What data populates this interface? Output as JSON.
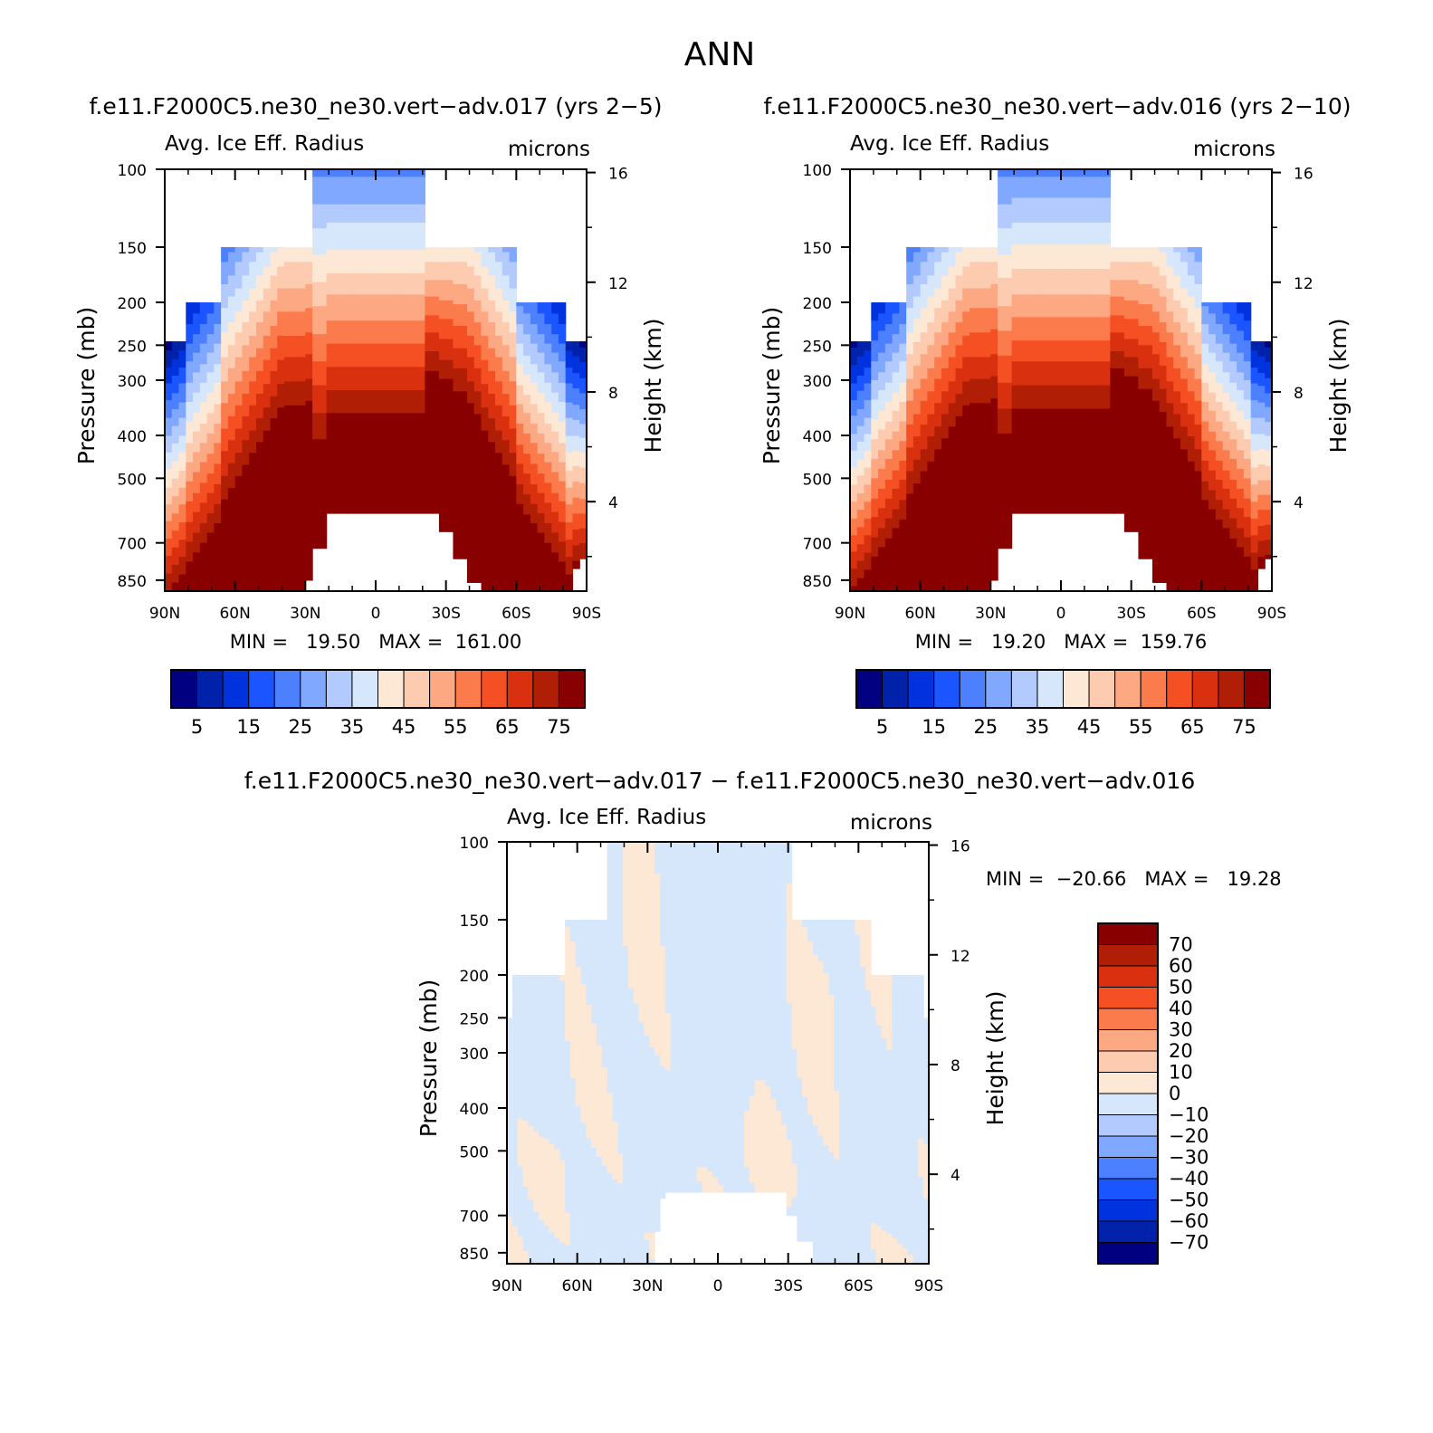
{
  "page_title": "ANN",
  "colors": {
    "abs_scale": [
      "#000080",
      "#0022aa",
      "#0033dd",
      "#1a55ff",
      "#4d80ff",
      "#80a8ff",
      "#b3caff",
      "#d6e7fb",
      "#fde8d6",
      "#fccbb0",
      "#fca882",
      "#fb7b4c",
      "#f55023",
      "#d93010",
      "#b01e06",
      "#880000"
    ],
    "diff_scale": [
      "#000080",
      "#0022aa",
      "#0033dd",
      "#1a55ff",
      "#4d80ff",
      "#80a8ff",
      "#b3caff",
      "#d6e7fb",
      "#fde8d6",
      "#fccbb0",
      "#fca882",
      "#fb7b4c",
      "#f55023",
      "#d93010",
      "#b01e06",
      "#880000"
    ]
  },
  "chart_data": [
    {
      "type": "heatmap",
      "title": "f.e11.F2000C5.ne30_ne30.vert−adv.017 (yrs 2−5)",
      "subtitle_left": "Avg. Ice Eff. Radius",
      "subtitle_right": "microns",
      "ylabel": "Pressure (mb)",
      "ylabel_right": "Height (km)",
      "x_ticks": [
        "90N",
        "60N",
        "30N",
        "0",
        "30S",
        "60S",
        "90S"
      ],
      "y_ticks": [
        "100",
        "150",
        "200",
        "250",
        "300",
        "400",
        "500",
        "700",
        "850"
      ],
      "y_ticks_right": [
        "16",
        "12",
        "8",
        "4"
      ],
      "stats": "MIN =   19.50   MAX =  161.00",
      "colorbar_labels": [
        "5",
        "15",
        "25",
        "35",
        "45",
        "55",
        "65",
        "75"
      ],
      "colorbar_levels": [
        0,
        5,
        10,
        15,
        20,
        25,
        30,
        35,
        40,
        45,
        50,
        55,
        60,
        65,
        70,
        75
      ],
      "min": 19.5,
      "max": 161.0
    },
    {
      "type": "heatmap",
      "title": "f.e11.F2000C5.ne30_ne30.vert−adv.016 (yrs 2−10)",
      "subtitle_left": "Avg. Ice Eff. Radius",
      "subtitle_right": "microns",
      "ylabel": "Pressure (mb)",
      "ylabel_right": "Height (km)",
      "x_ticks": [
        "90N",
        "60N",
        "30N",
        "0",
        "30S",
        "60S",
        "90S"
      ],
      "y_ticks": [
        "100",
        "150",
        "200",
        "250",
        "300",
        "400",
        "500",
        "700",
        "850"
      ],
      "y_ticks_right": [
        "16",
        "12",
        "8",
        "4"
      ],
      "stats": "MIN =   19.20   MAX =  159.76",
      "colorbar_labels": [
        "5",
        "15",
        "25",
        "35",
        "45",
        "55",
        "65",
        "75"
      ],
      "colorbar_levels": [
        0,
        5,
        10,
        15,
        20,
        25,
        30,
        35,
        40,
        45,
        50,
        55,
        60,
        65,
        70,
        75
      ],
      "min": 19.2,
      "max": 159.76
    },
    {
      "type": "heatmap",
      "title": "f.e11.F2000C5.ne30_ne30.vert−adv.017 − f.e11.F2000C5.ne30_ne30.vert−adv.016",
      "subtitle_left": "Avg. Ice Eff. Radius",
      "subtitle_right": "microns",
      "ylabel": "Pressure (mb)",
      "ylabel_right": "Height (km)",
      "x_ticks": [
        "90N",
        "60N",
        "30N",
        "0",
        "30S",
        "60S",
        "90S"
      ],
      "y_ticks": [
        "100",
        "150",
        "200",
        "250",
        "300",
        "400",
        "500",
        "700",
        "850"
      ],
      "y_ticks_right": [
        "16",
        "12",
        "8",
        "4"
      ],
      "stats": "MIN =  −20.66   MAX =   19.28",
      "colorbar_labels": [
        "70",
        "60",
        "50",
        "40",
        "30",
        "20",
        "10",
        "0",
        "−10",
        "−20",
        "−30",
        "−40",
        "−50",
        "−60",
        "−70"
      ],
      "colorbar_levels": [
        -70,
        -60,
        -50,
        -40,
        -30,
        -20,
        -10,
        0,
        10,
        20,
        30,
        40,
        50,
        60,
        70
      ],
      "min": -20.66,
      "max": 19.28
    }
  ]
}
